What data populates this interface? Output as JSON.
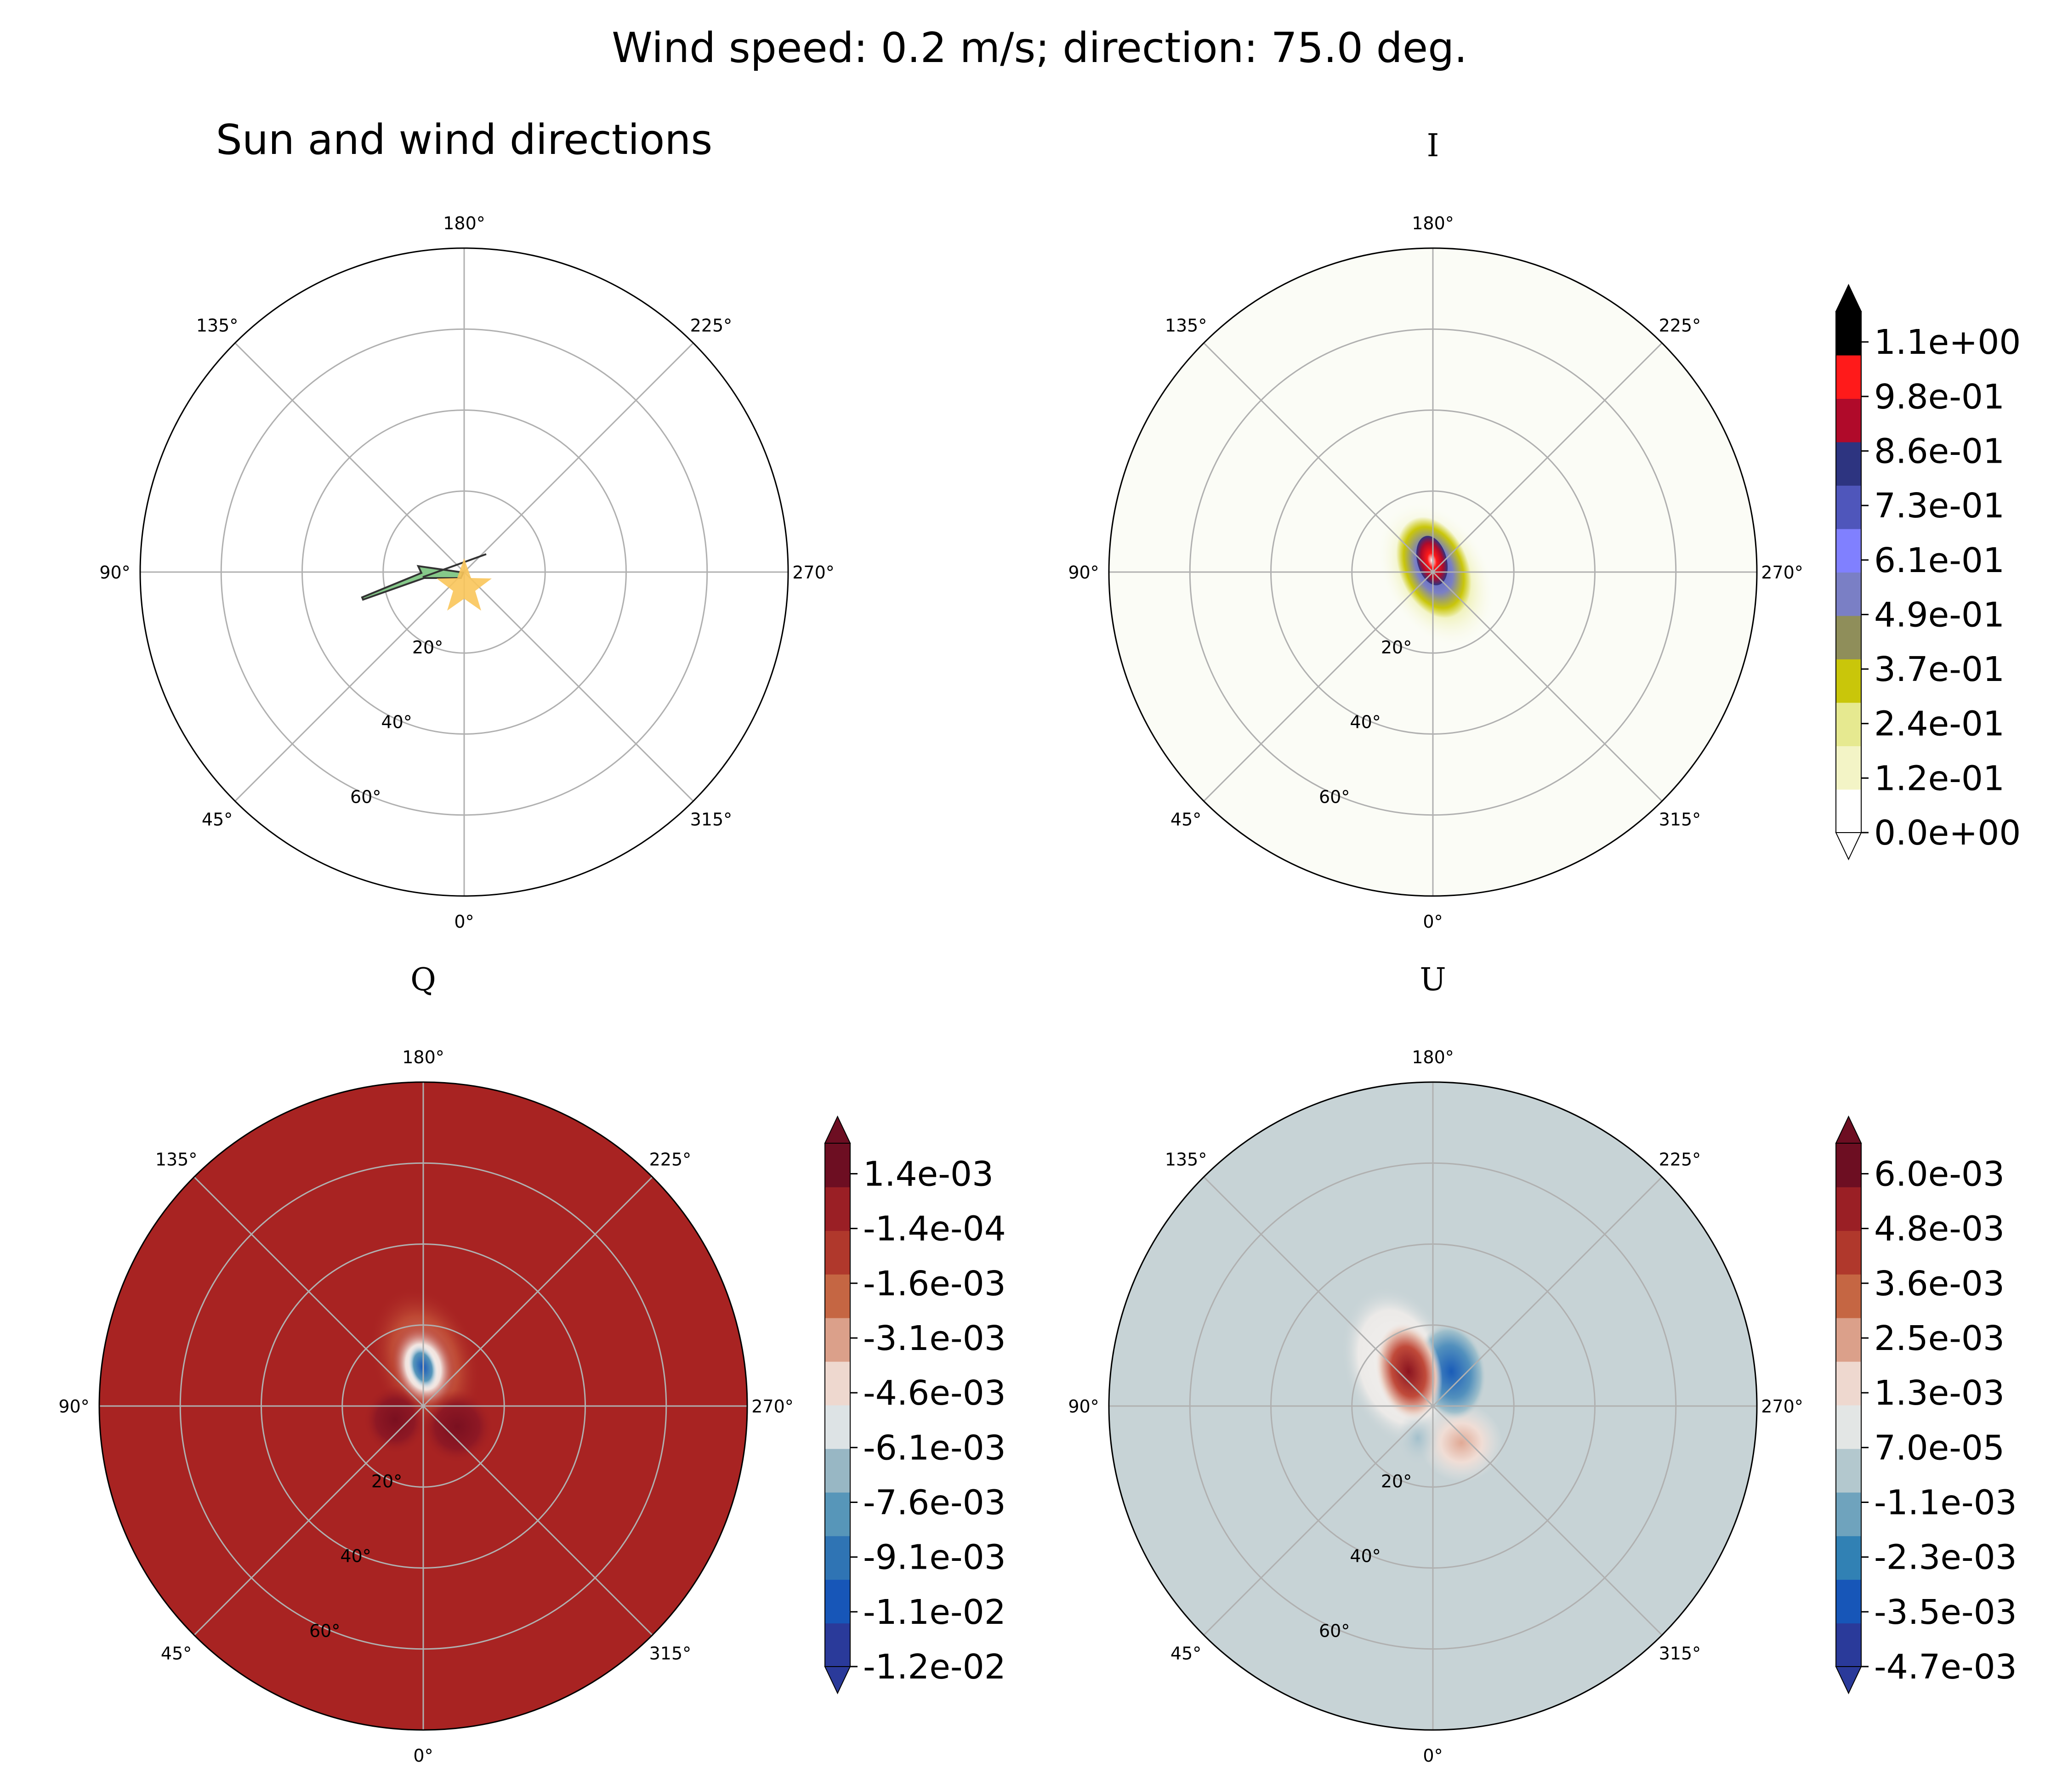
{
  "suptitle": "Wind speed: 0.2 m/s; direction: 75.0 deg.",
  "colors": {
    "grid": "#b0b0b0",
    "sun": "#f9c55a",
    "wind_arrow": "#86c98a",
    "Q_background": "#a82322",
    "U_background": "#c7d3d6",
    "I_background": "#fbfcf6"
  },
  "chart_data": [
    {
      "type": "polar",
      "title": "Sun and wind directions",
      "theta_ticks": [
        "0°",
        "45°",
        "90°",
        "135°",
        "180°",
        "225°",
        "270°",
        "315°"
      ],
      "r_ticks": [
        "20°",
        "40°",
        "60°"
      ],
      "r_max": 80,
      "markers": [
        {
          "name": "sun",
          "shape": "star-icon",
          "theta_deg": 0,
          "r_deg": 0
        },
        {
          "name": "wind",
          "shape": "arrow-icon",
          "direction_deg": 75.0,
          "speed_ms": 0.2
        }
      ]
    },
    {
      "type": "heatmap",
      "title": "I",
      "theta_ticks": [
        "0°",
        "45°",
        "90°",
        "135°",
        "180°",
        "225°",
        "270°",
        "315°"
      ],
      "r_ticks": [
        "20°",
        "40°",
        "60°"
      ],
      "colorbar_ticks": [
        "1.1e+00",
        "9.8e-01",
        "8.6e-01",
        "7.3e-01",
        "6.1e-01",
        "4.9e-01",
        "3.7e-01",
        "2.4e-01",
        "1.2e-01",
        "0.0e+00"
      ],
      "colorbar_colors": [
        "#ffffff",
        "#f3f4c6",
        "#e6e990",
        "#c9c60a",
        "#8f8e5a",
        "#7a7fc5",
        "#8080ff",
        "#4f56bb",
        "#2d3480",
        "#b00a2a",
        "#ff1a1a",
        "#000000"
      ],
      "peak": {
        "theta_deg": 180,
        "r_deg": 2,
        "value": 1.2
      }
    },
    {
      "type": "heatmap",
      "title": "Q",
      "theta_ticks": [
        "0°",
        "45°",
        "90°",
        "135°",
        "180°",
        "225°",
        "270°",
        "315°"
      ],
      "r_ticks": [
        "20°",
        "40°",
        "60°"
      ],
      "colorbar_ticks": [
        "1.4e-03",
        "-1.4e-04",
        "-1.6e-03",
        "-3.1e-03",
        "-4.6e-03",
        "-6.1e-03",
        "-7.6e-03",
        "-9.1e-03",
        "-1.1e-02",
        "-1.2e-02"
      ],
      "colorbar_colors": [
        "#2a3a9a",
        "#1756b8",
        "#2f74b4",
        "#5796b9",
        "#98b7c4",
        "#dde3e5",
        "#eed8cf",
        "#dba08a",
        "#c56643",
        "#b0382c",
        "#9a1f25",
        "#6d0e22"
      ]
    },
    {
      "type": "heatmap",
      "title": "U",
      "theta_ticks": [
        "0°",
        "45°",
        "90°",
        "135°",
        "180°",
        "225°",
        "270°",
        "315°"
      ],
      "r_ticks": [
        "20°",
        "40°",
        "60°"
      ],
      "colorbar_ticks": [
        "6.0e-03",
        "4.8e-03",
        "3.6e-03",
        "2.5e-03",
        "1.3e-03",
        "7.0e-05",
        "-1.1e-03",
        "-2.3e-03",
        "-3.5e-03",
        "-4.7e-03"
      ],
      "colorbar_colors": [
        "#2a3a9a",
        "#1756b8",
        "#3181b4",
        "#6fa3bd",
        "#b3c8ce",
        "#e3e6e5",
        "#eed8cf",
        "#dba08a",
        "#c56643",
        "#b0382c",
        "#9a1f25",
        "#6d0e22"
      ]
    }
  ]
}
